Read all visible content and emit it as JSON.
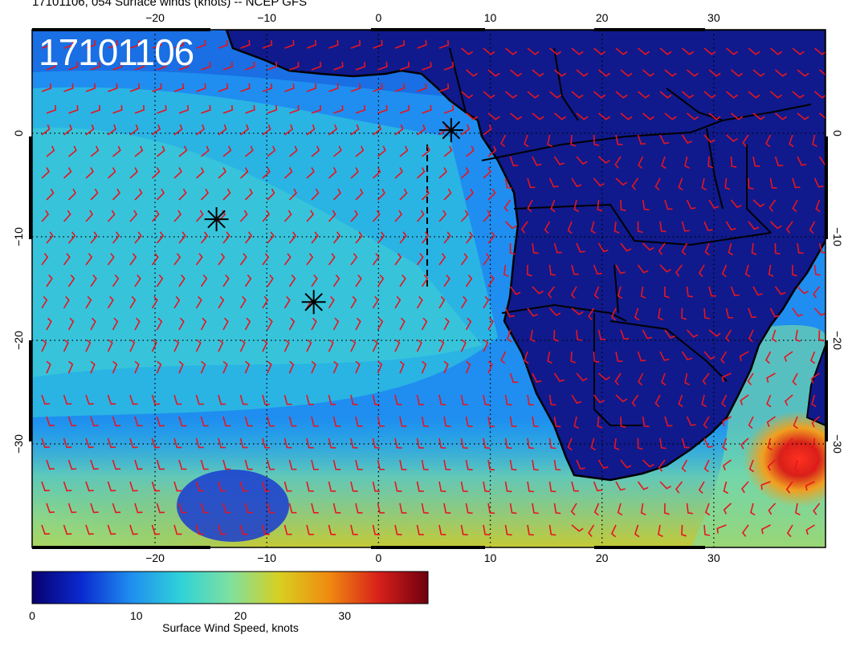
{
  "title": "17101106, 054 Surface winds (knots) -- NCEP GFS",
  "timestamp": "17101106",
  "map": {
    "lon_ticks": [
      "−20",
      "−10",
      "0",
      "10",
      "20",
      "30"
    ],
    "lat_ticks": [
      "0",
      "−10",
      "−20",
      "−30"
    ],
    "lon_range": [
      -31,
      40
    ],
    "lat_range": [
      -40,
      10
    ],
    "gridlines": "dotted",
    "wind_barb_color": "#e8141e",
    "land_color": "#101a8c",
    "storm_markers": [
      {
        "lon": 6.5,
        "lat": 0.3
      },
      {
        "lon": -14.5,
        "lat": -8.3
      },
      {
        "lon": -5.8,
        "lat": -16.3
      }
    ]
  },
  "colorbar": {
    "label": "Surface Wind Speed, knots",
    "ticks": [
      "0",
      "10",
      "20",
      "30"
    ],
    "min": 0,
    "max": 38,
    "colors": [
      "#08006e",
      "#0a2ad0",
      "#1f8ef0",
      "#2fd2d8",
      "#7ee0a0",
      "#d8d020",
      "#f08a10",
      "#d8201a",
      "#6e0010"
    ]
  }
}
